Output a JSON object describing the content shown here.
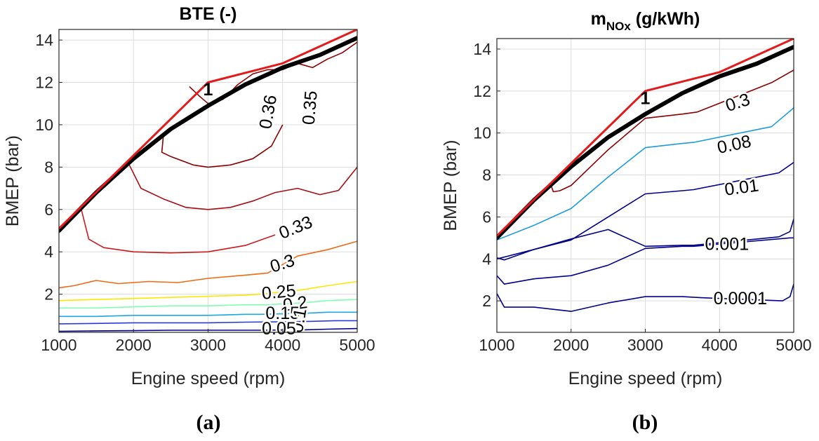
{
  "chart_data": [
    {
      "type": "contour",
      "title": "BTE (-)",
      "xlabel": "Engine speed (rpm)",
      "ylabel": "BMEP (bar)",
      "xlim": [
        1000,
        5000
      ],
      "ylim": [
        0.2,
        14.5
      ],
      "xticks": [
        1000,
        2000,
        3000,
        4000,
        5000
      ],
      "yticks": [
        2,
        4,
        6,
        8,
        10,
        12,
        14
      ],
      "grid": true,
      "caption": "(a)",
      "boundary_lines": [
        {
          "color": "#000000",
          "style": "thick",
          "x": [
            1000,
            1500,
            2000,
            2500,
            3000,
            3500,
            4000,
            4500,
            5000
          ],
          "y": [
            5.0,
            6.8,
            8.4,
            9.8,
            10.9,
            11.9,
            12.7,
            13.3,
            14.1
          ]
        },
        {
          "color": "#e31a1c",
          "style": "thin",
          "x": [
            1000,
            3000,
            4000,
            5000
          ],
          "y": [
            5.1,
            12.0,
            12.9,
            14.5
          ]
        }
      ],
      "marker": {
        "label": "1",
        "x": 3000,
        "y": 11.6
      },
      "contours": [
        {
          "level": "0.35",
          "color": "#8b0000",
          "label_x": 4380,
          "label_y": 10.8,
          "label_rot": -85,
          "x": [
            2750,
            2900,
            3000,
            3200,
            3400,
            3600,
            3800,
            4000,
            4200,
            4400,
            4600,
            4800,
            5000
          ],
          "y": [
            11.8,
            11.3,
            11.0,
            11.2,
            11.9,
            12.4,
            12.6,
            12.6,
            12.9,
            12.7,
            13.1,
            13.4,
            13.9
          ]
        },
        {
          "level": "0.36",
          "color": "#8b0000",
          "label_x": 3820,
          "label_y": 10.6,
          "label_rot": -80,
          "x": [
            2400,
            2380,
            2500,
            2800,
            3000,
            3300,
            3600,
            3850,
            4000
          ],
          "y": [
            9.5,
            8.7,
            8.5,
            8.1,
            8.0,
            8.1,
            8.4,
            9.0,
            10.0
          ]
        },
        {
          "level": "",
          "color": "#a50f15",
          "label_x": 0,
          "label_y": 0,
          "label_rot": 0,
          "x": [
            1930,
            2100,
            2400,
            2700,
            3000,
            3300,
            3600,
            3900,
            4200,
            4500,
            4750,
            5000
          ],
          "y": [
            8.2,
            7.0,
            6.5,
            6.1,
            6.0,
            6.1,
            6.4,
            6.8,
            7.0,
            6.7,
            6.9,
            8.0
          ]
        },
        {
          "level": "0.33",
          "color": "#cb181d",
          "label_x": 4180,
          "label_y": 5.1,
          "label_rot": -22,
          "x": [
            1300,
            1400,
            1600,
            2000,
            2500,
            3000,
            3500,
            3900
          ],
          "y": [
            6.0,
            4.6,
            4.2,
            4.0,
            3.95,
            4.0,
            4.3,
            4.8
          ]
        },
        {
          "level": "0.3",
          "color": "#f16913",
          "label_x": 4000,
          "label_y": 3.4,
          "label_rot": -18,
          "x": [
            1000,
            1200,
            1500,
            1800,
            2200,
            2600,
            3000,
            3500,
            3800,
            4200,
            4600,
            5000
          ],
          "y": [
            2.3,
            2.4,
            2.65,
            2.5,
            2.6,
            2.55,
            2.75,
            2.9,
            3.0,
            3.8,
            4.1,
            4.5
          ]
        },
        {
          "level": "0.25",
          "color": "#ffe600",
          "label_x": 3950,
          "label_y": 2.05,
          "label_rot": -5,
          "x": [
            1000,
            1500,
            2000,
            2500,
            3000,
            3500,
            3700,
            4250,
            4600,
            5000
          ],
          "y": [
            1.7,
            1.75,
            1.8,
            1.85,
            1.9,
            1.95,
            2.0,
            2.2,
            2.4,
            2.6
          ]
        },
        {
          "level": "0.2",
          "color": "#7fffb2",
          "label_x": 4170,
          "label_y": 1.5,
          "label_rot": -8,
          "x": [
            1000,
            1500,
            2000,
            2500,
            3000,
            3500,
            3800,
            4300,
            4600,
            5000
          ],
          "y": [
            1.35,
            1.35,
            1.4,
            1.45,
            1.45,
            1.5,
            1.5,
            1.6,
            1.7,
            1.75
          ]
        },
        {
          "level": "0.15",
          "color": "#1ea7e3",
          "label_x": 4000,
          "label_y": 1.05,
          "label_rot": 0,
          "x": [
            1000,
            1500,
            2000,
            2500,
            3000,
            3500,
            3700,
            4300,
            4600,
            5000
          ],
          "y": [
            0.95,
            0.95,
            1.0,
            1.0,
            1.0,
            1.05,
            1.05,
            1.1,
            1.15,
            1.15
          ]
        },
        {
          "level": "0.1",
          "color": "#2b3bd8",
          "label_x": 4230,
          "label_y": 0.75,
          "label_rot": -80,
          "x": [
            1000,
            1500,
            2000,
            2500,
            3000,
            3500,
            4000,
            4400,
            4700,
            5000
          ],
          "y": [
            0.6,
            0.62,
            0.65,
            0.65,
            0.65,
            0.68,
            0.7,
            0.72,
            0.75,
            0.75
          ]
        },
        {
          "level": "0.05",
          "color": "#00008b",
          "label_x": 3950,
          "label_y": 0.32,
          "label_rot": 0,
          "x": [
            1000,
            1500,
            2000,
            2500,
            3000,
            3500,
            3700,
            4300,
            4600,
            5000
          ],
          "y": [
            0.25,
            0.27,
            0.28,
            0.3,
            0.3,
            0.3,
            0.3,
            0.32,
            0.35,
            0.38
          ]
        }
      ]
    },
    {
      "type": "contour",
      "title": "m",
      "title_sub": "NOx",
      "title_suffix": " (g/kWh)",
      "xlabel": "Engine speed (rpm)",
      "ylabel": "BMEP (bar)",
      "xlim": [
        1000,
        5000
      ],
      "ylim": [
        0.5,
        14.5
      ],
      "xticks": [
        1000,
        2000,
        3000,
        4000,
        5000
      ],
      "yticks": [
        2,
        4,
        6,
        8,
        10,
        12,
        14
      ],
      "grid": true,
      "caption": "(b)",
      "boundary_lines": [
        {
          "color": "#000000",
          "style": "thick",
          "x": [
            1000,
            1500,
            2000,
            2500,
            3000,
            3500,
            4000,
            4500,
            5000
          ],
          "y": [
            5.0,
            6.8,
            8.4,
            9.8,
            10.9,
            11.9,
            12.7,
            13.3,
            14.1
          ]
        },
        {
          "color": "#e31a1c",
          "style": "thin",
          "x": [
            1000,
            3000,
            4000,
            5000
          ],
          "y": [
            5.1,
            12.0,
            12.9,
            14.5
          ]
        }
      ],
      "marker": {
        "label": "1",
        "x": 3000,
        "y": 11.6
      },
      "contours": [
        {
          "level": "0.3",
          "color": "#8b0000",
          "label_x": 4250,
          "label_y": 11.4,
          "label_rot": -18,
          "x": [
            1730,
            1760,
            1850,
            2000,
            2500,
            3000,
            3500,
            3700,
            4700,
            5000
          ],
          "y": [
            7.5,
            7.2,
            7.25,
            7.5,
            9.2,
            10.7,
            10.9,
            11.0,
            12.4,
            13.0
          ]
        },
        {
          "level": "0.08",
          "color": "#1c9be0",
          "label_x": 4200,
          "label_y": 9.4,
          "label_rot": -12,
          "x": [
            1000,
            1500,
            2000,
            2500,
            3000,
            3500,
            3650,
            4700,
            5000
          ],
          "y": [
            4.9,
            5.6,
            6.4,
            7.9,
            9.3,
            9.5,
            9.55,
            10.3,
            11.2
          ]
        },
        {
          "level": "0.01",
          "color": "#00008b",
          "label_x": 4300,
          "label_y": 7.35,
          "label_rot": -8,
          "x": [
            1000,
            1500,
            2000,
            2500,
            3000,
            3500,
            3650,
            4800,
            5000
          ],
          "y": [
            4.0,
            4.45,
            4.9,
            6.0,
            7.1,
            7.25,
            7.3,
            8.1,
            8.6
          ]
        },
        {
          "level": "0.001",
          "color": "#00008b",
          "label_x": 4100,
          "label_y": 4.65,
          "label_rot": 0,
          "x": [
            1000,
            1100,
            1500,
            2000,
            2500,
            3000,
            3500,
            3650,
            4800,
            4950,
            5000
          ],
          "y": [
            4.05,
            3.95,
            4.45,
            4.95,
            5.4,
            4.6,
            4.65,
            4.65,
            5.05,
            5.3,
            5.9
          ]
        },
        {
          "level": "0.0001",
          "color": "#00008b",
          "label_x": 4280,
          "label_y": 2.05,
          "label_rot": 0,
          "x": [
            1000,
            1100,
            1500,
            2000,
            2500,
            3000,
            3500,
            3650,
            4950,
            5000
          ],
          "y": [
            3.2,
            2.8,
            3.05,
            3.2,
            3.7,
            4.5,
            4.6,
            4.6,
            5.0,
            5.0
          ]
        },
        {
          "level": "",
          "color": "#00008b",
          "label_x": 0,
          "label_y": 0,
          "label_rot": 0,
          "x": [
            1000,
            1100,
            1500,
            2000,
            2500,
            3000,
            3500,
            3750,
            4850,
            4950,
            5000
          ],
          "y": [
            2.35,
            1.7,
            1.7,
            1.5,
            1.9,
            2.2,
            2.2,
            2.15,
            2.0,
            2.2,
            2.8
          ]
        }
      ]
    }
  ]
}
